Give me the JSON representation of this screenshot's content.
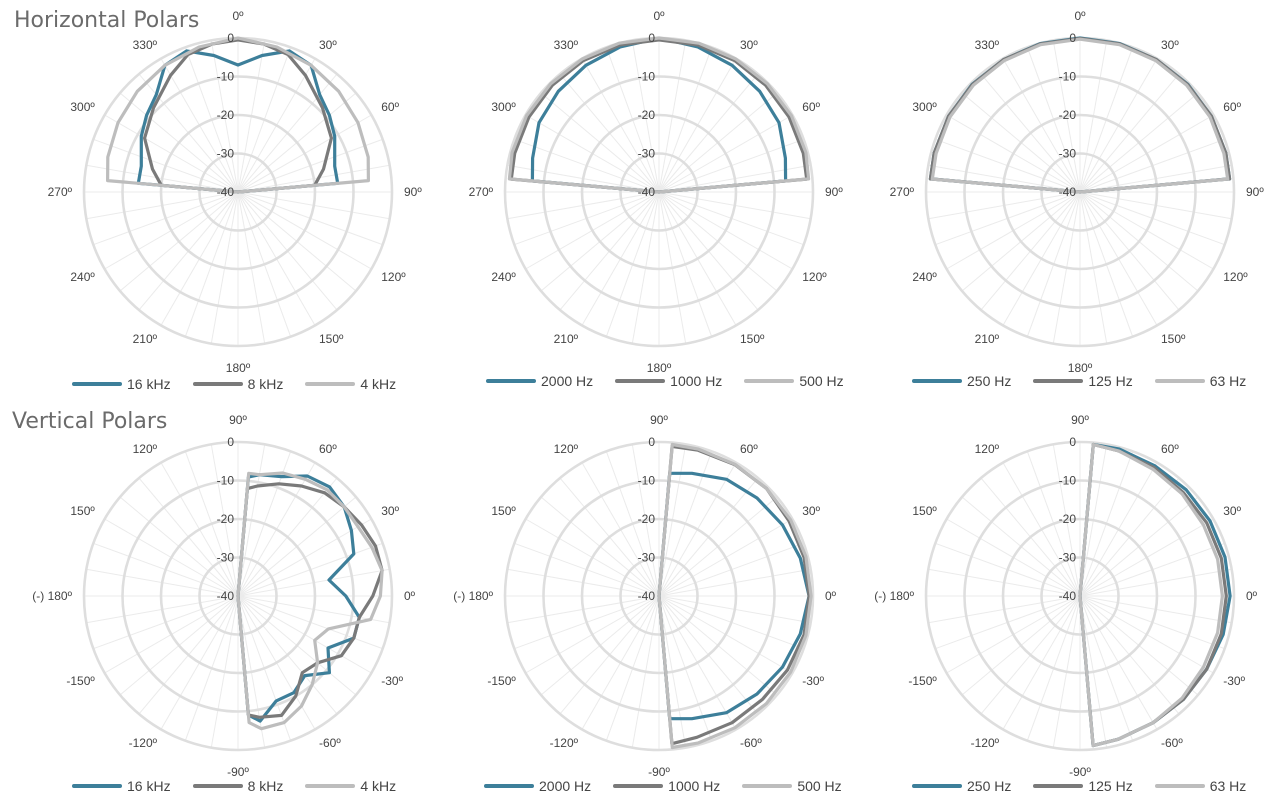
{
  "page": {
    "horizontal_title": "Horizontal Polars",
    "vertical_title": "Vertical Polars"
  },
  "colors": {
    "c1": "#3d7f9a",
    "c2": "#7a7a7a",
    "c3": "#bdbdbd"
  },
  "chart_data": [
    {
      "type": "polar",
      "title": "",
      "rlim": [
        -40,
        0
      ],
      "ring_labels": [
        "0",
        "-10",
        "-20",
        "-30",
        "-40"
      ],
      "angle_labels": [
        "0º",
        "30º",
        "60º",
        "90º",
        "120º",
        "150º",
        "180º",
        "210º",
        "240º",
        "270º",
        "300º",
        "330º"
      ],
      "legend": "bottom",
      "series": [
        {
          "name": "16 kHz",
          "color": "#3d7f9a",
          "theta": [
            -90,
            -85,
            -75,
            -60,
            -50,
            -40,
            -30,
            -20,
            -10,
            0,
            10,
            20,
            30,
            40,
            50,
            60,
            75,
            85,
            90
          ],
          "r": [
            -40,
            -14,
            -14,
            -11,
            -9,
            -7,
            -2,
            -1,
            -4,
            -7,
            -4,
            -1,
            -2,
            -7,
            -9,
            -11,
            -14,
            -14,
            -40
          ]
        },
        {
          "name": "8 kHz",
          "color": "#7a7a7a",
          "theta": [
            -90,
            -85,
            -75,
            -60,
            -45,
            -30,
            -20,
            -10,
            0,
            10,
            20,
            30,
            45,
            60,
            75,
            85,
            90
          ],
          "r": [
            -40,
            -20,
            -17,
            -12,
            -9,
            -5,
            -2,
            -1,
            -0.5,
            -1,
            -2,
            -5,
            -9,
            -12,
            -17,
            -20,
            -40
          ]
        },
        {
          "name": "4 kHz",
          "color": "#bdbdbd",
          "theta": [
            -90,
            -85,
            -75,
            -60,
            -45,
            -30,
            -15,
            0,
            15,
            30,
            45,
            60,
            75,
            85,
            90
          ],
          "r": [
            -40,
            -6,
            -5,
            -4,
            -3,
            -2,
            -1,
            0,
            -1,
            -2,
            -3,
            -4,
            -5,
            -6,
            -40
          ]
        }
      ]
    },
    {
      "type": "polar",
      "title": "",
      "rlim": [
        -40,
        0
      ],
      "ring_labels": [
        "0",
        "-10",
        "-20",
        "-30",
        "-40"
      ],
      "angle_labels": [
        "0º",
        "30º",
        "60º",
        "90º",
        "120º",
        "150º",
        "180º",
        "210º",
        "240º",
        "270º",
        "300º",
        "330º"
      ],
      "legend": "bottom",
      "series": [
        {
          "name": "2000 Hz",
          "color": "#3d7f9a",
          "theta": [
            -90,
            -85,
            -75,
            -60,
            -45,
            -30,
            -15,
            0,
            15,
            30,
            45,
            60,
            75,
            85,
            90
          ],
          "r": [
            -40,
            -7,
            -6,
            -4,
            -3,
            -2,
            -1,
            0,
            -1,
            -2,
            -3,
            -4,
            -6,
            -7,
            -40
          ]
        },
        {
          "name": "1000 Hz",
          "color": "#7a7a7a",
          "theta": [
            -90,
            -85,
            -75,
            -60,
            -45,
            -30,
            -15,
            0,
            15,
            30,
            45,
            60,
            75,
            85,
            90
          ],
          "r": [
            -40,
            -1.5,
            -1.2,
            -1,
            -0.8,
            -0.6,
            -0.5,
            -0.5,
            -0.5,
            -0.6,
            -0.8,
            -1,
            -1.2,
            -1.5,
            -40
          ]
        },
        {
          "name": "500 Hz",
          "color": "#bdbdbd",
          "theta": [
            -90,
            -85,
            -75,
            -60,
            -45,
            -30,
            -15,
            0,
            15,
            30,
            45,
            60,
            75,
            85,
            90
          ],
          "r": [
            -40,
            -1,
            -0.5,
            -0.3,
            -0.2,
            -0.1,
            0,
            0,
            0,
            -0.1,
            -0.2,
            -0.3,
            -0.5,
            -1,
            -40
          ]
        }
      ]
    },
    {
      "type": "polar",
      "title": "",
      "rlim": [
        -40,
        0
      ],
      "ring_labels": [
        "0",
        "-10",
        "-20",
        "-30",
        "-40"
      ],
      "angle_labels": [
        "0º",
        "30º",
        "60º",
        "90º",
        "120º",
        "150º",
        "180º",
        "210º",
        "240º",
        "270º",
        "300º",
        "330º"
      ],
      "legend": "bottom",
      "series": [
        {
          "name": "250 Hz",
          "color": "#3d7f9a",
          "theta": [
            -90,
            -85,
            -75,
            -60,
            -45,
            -30,
            -15,
            0,
            15,
            30,
            45,
            60,
            75,
            85,
            90
          ],
          "r": [
            -40,
            -1,
            -0.8,
            -0.6,
            -0.4,
            -0.3,
            -0.1,
            0,
            -0.1,
            -0.3,
            -0.4,
            -0.6,
            -0.8,
            -1,
            -40
          ]
        },
        {
          "name": "125 Hz",
          "color": "#7a7a7a",
          "theta": [
            -90,
            -85,
            -75,
            -60,
            -45,
            -30,
            -15,
            0,
            15,
            30,
            45,
            60,
            75,
            85,
            90
          ],
          "r": [
            -40,
            -1,
            -0.8,
            -0.6,
            -0.5,
            -0.3,
            -0.2,
            -0.1,
            -0.2,
            -0.3,
            -0.5,
            -0.6,
            -0.8,
            -1,
            -40
          ]
        },
        {
          "name": "63 Hz",
          "color": "#bdbdbd",
          "theta": [
            -90,
            -85,
            -75,
            -60,
            -45,
            -30,
            -15,
            0,
            15,
            30,
            45,
            60,
            75,
            85,
            90
          ],
          "r": [
            -40,
            -1.5,
            -1.3,
            -1,
            -0.8,
            -0.6,
            -0.4,
            -0.3,
            -0.4,
            -0.6,
            -0.8,
            -1,
            -1.3,
            -1.5,
            -40
          ]
        }
      ]
    },
    {
      "type": "polar",
      "title": "",
      "rlim": [
        -40,
        0
      ],
      "ring_labels": [
        "0",
        "-10",
        "-20",
        "-30",
        "-40"
      ],
      "angle_labels": [
        "0º",
        "30º",
        "60º",
        "90º",
        "120º",
        "150º",
        "(-) 180º",
        "-150º",
        "-120º",
        "-90º",
        "-60º",
        "-30º"
      ],
      "legend": "bottom",
      "series": [
        {
          "name": "16 kHz",
          "color": "#3d7f9a",
          "theta": [
            90,
            85,
            80,
            70,
            60,
            50,
            40,
            30,
            20,
            10,
            0,
            -10,
            -20,
            -30,
            -40,
            -50,
            -60,
            -70,
            -80,
            -85,
            -90
          ],
          "r": [
            -40,
            -9,
            -8,
            -7,
            -4,
            -3,
            -4,
            -6,
            -8,
            -16,
            -12,
            -8,
            -8,
            -13,
            -9,
            -13,
            -11,
            -11,
            -7,
            -9,
            -40
          ]
        },
        {
          "name": "8 kHz",
          "color": "#7a7a7a",
          "theta": [
            90,
            85,
            80,
            70,
            60,
            50,
            40,
            30,
            20,
            10,
            0,
            -10,
            -20,
            -30,
            -40,
            -50,
            -60,
            -70,
            -80,
            -85,
            -90
          ],
          "r": [
            -40,
            -12,
            -11,
            -9,
            -7,
            -5,
            -4,
            -3,
            -2,
            -2,
            -5,
            -8,
            -8,
            -9,
            -13,
            -14,
            -10,
            -7,
            -8,
            -9,
            -40
          ]
        },
        {
          "name": "4 kHz",
          "color": "#bdbdbd",
          "theta": [
            90,
            85,
            80,
            70,
            60,
            50,
            40,
            30,
            20,
            10,
            0,
            -10,
            -20,
            -30,
            -40,
            -50,
            -60,
            -70,
            -80,
            -85,
            -90
          ],
          "r": [
            -40,
            -8,
            -8,
            -6,
            -5,
            -4,
            -4,
            -4,
            -3,
            -2,
            -3,
            -5,
            -15,
            -17,
            -13,
            -10,
            -7,
            -5,
            -5,
            -7,
            -40
          ]
        }
      ]
    },
    {
      "type": "polar",
      "title": "",
      "rlim": [
        -40,
        0
      ],
      "ring_labels": [
        "0",
        "-10",
        "-20",
        "-30",
        "-40"
      ],
      "angle_labels": [
        "0º",
        "30º",
        "60º",
        "90º",
        "120º",
        "150º",
        "(-) 180º",
        "-150º",
        "-120º",
        "-90º",
        "-60º",
        "-30º"
      ],
      "legend": "bottom",
      "series": [
        {
          "name": "2000 Hz",
          "color": "#3d7f9a",
          "theta": [
            90,
            85,
            75,
            60,
            45,
            30,
            15,
            0,
            -15,
            -30,
            -45,
            -60,
            -75,
            -85,
            -90
          ],
          "r": [
            -40,
            -8,
            -7,
            -5,
            -4,
            -3,
            -2,
            -1,
            -2,
            -3,
            -4,
            -5,
            -7,
            -8,
            -40
          ]
        },
        {
          "name": "1000 Hz",
          "color": "#7a7a7a",
          "theta": [
            90,
            85,
            75,
            60,
            45,
            30,
            15,
            0,
            -15,
            -30,
            -45,
            -60,
            -75,
            -85,
            -90
          ],
          "r": [
            -40,
            -1,
            -0.8,
            -0.6,
            -0.5,
            -1,
            -1,
            -1,
            -1,
            -1.5,
            -2,
            -2,
            -2,
            -1.5,
            -40
          ]
        },
        {
          "name": "500 Hz",
          "color": "#bdbdbd",
          "theta": [
            90,
            85,
            75,
            60,
            45,
            30,
            15,
            0,
            -15,
            -30,
            -45,
            -60,
            -75,
            -85,
            -90
          ],
          "r": [
            -40,
            -0.5,
            -0.5,
            -0.5,
            -0.5,
            -0.5,
            -0.5,
            -0.5,
            -0.5,
            -0.5,
            -0.5,
            -0.5,
            -0.5,
            -0.5,
            -40
          ]
        }
      ]
    },
    {
      "type": "polar",
      "title": "",
      "rlim": [
        -40,
        0
      ],
      "ring_labels": [
        "0",
        "-10",
        "-20",
        "-30",
        "-40"
      ],
      "angle_labels": [
        "0º",
        "30º",
        "60º",
        "90º",
        "120º",
        "150º",
        "(-) 180º",
        "-150º",
        "-120º",
        "-90º",
        "-60º",
        "-30º"
      ],
      "legend": "bottom",
      "series": [
        {
          "name": "250 Hz",
          "color": "#3d7f9a",
          "theta": [
            90,
            85,
            75,
            60,
            45,
            30,
            15,
            0,
            -15,
            -30,
            -45,
            -60,
            -75,
            -85,
            -90
          ],
          "r": [
            -40,
            -0.5,
            -0.5,
            -1,
            -1,
            -1,
            -1,
            -1,
            -1.5,
            -2,
            -2,
            -2,
            -1.5,
            -1,
            -40
          ]
        },
        {
          "name": "125 Hz",
          "color": "#7a7a7a",
          "theta": [
            90,
            85,
            75,
            60,
            45,
            30,
            15,
            0,
            -15,
            -30,
            -45,
            -60,
            -75,
            -85,
            -90
          ],
          "r": [
            -40,
            -0.5,
            -1,
            -1.5,
            -2,
            -2,
            -2,
            -2,
            -2,
            -2,
            -2,
            -2,
            -1.5,
            -1,
            -40
          ]
        },
        {
          "name": "63 Hz",
          "color": "#bdbdbd",
          "theta": [
            90,
            85,
            75,
            60,
            45,
            30,
            15,
            0,
            -15,
            -30,
            -45,
            -60,
            -75,
            -85,
            -90
          ],
          "r": [
            -40,
            -0.5,
            -1,
            -2,
            -2.5,
            -3,
            -3,
            -3,
            -3,
            -3,
            -2.5,
            -2,
            -1.5,
            -1,
            -40
          ]
        }
      ]
    }
  ]
}
